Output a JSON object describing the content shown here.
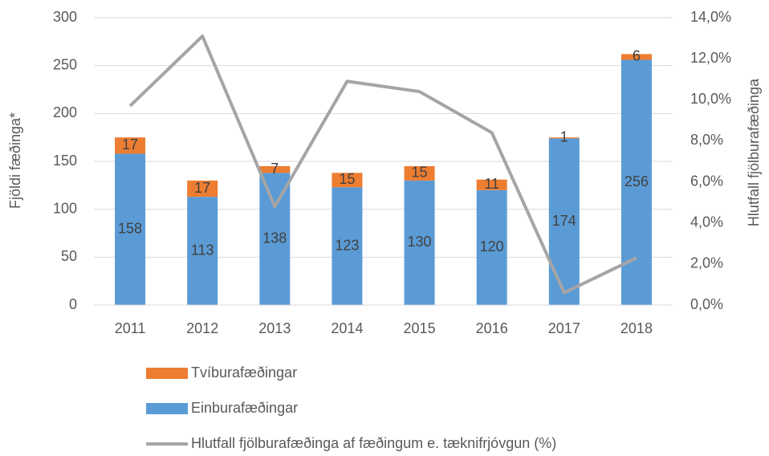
{
  "chart_data": {
    "type": "bar",
    "stacked": true,
    "categories": [
      "2011",
      "2012",
      "2013",
      "2014",
      "2015",
      "2016",
      "2017",
      "2018"
    ],
    "series": [
      {
        "name": "Einburafæðingar",
        "color": "#5b9bd5",
        "values": [
          158,
          113,
          138,
          123,
          130,
          120,
          174,
          256
        ]
      },
      {
        "name": "Tvíburafæðingar",
        "color": "#ed7d31",
        "values": [
          17,
          17,
          7,
          15,
          15,
          11,
          1,
          6
        ]
      },
      {
        "name": "Hlutfall fjölburafæðinga af fæðingum e. tæknifrjóvgun (%)",
        "color": "#a5a5a5",
        "type": "line",
        "axis": "y2",
        "values": [
          9.7,
          13.1,
          4.8,
          10.9,
          10.4,
          8.4,
          0.6,
          2.3
        ]
      }
    ],
    "y_label": "Fjöldi fæðinga*",
    "y2_label": "Hlutfall fjölburafæðinga",
    "ylim": [
      0,
      300
    ],
    "yticks": [
      0,
      50,
      100,
      150,
      200,
      250,
      300
    ],
    "y2lim": [
      0,
      14
    ],
    "y2ticks": [
      {
        "value": 0,
        "label": "0,0%"
      },
      {
        "value": 2,
        "label": "2,0%"
      },
      {
        "value": 4,
        "label": "4,0%"
      },
      {
        "value": 6,
        "label": "6,0%"
      },
      {
        "value": 8,
        "label": "8,0%"
      },
      {
        "value": 10,
        "label": "10,0%"
      },
      {
        "value": 12,
        "label": "12,0%"
      },
      {
        "value": 14,
        "label": "14,0%"
      }
    ],
    "grid": true
  }
}
